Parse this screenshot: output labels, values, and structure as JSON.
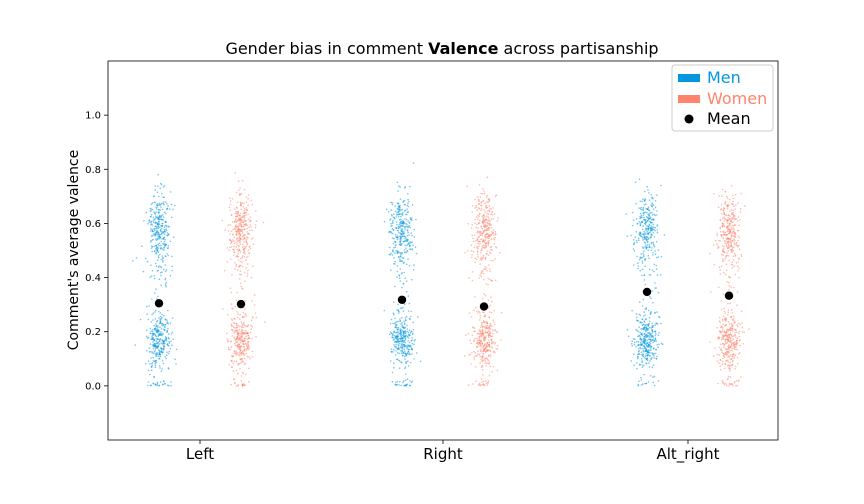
{
  "chart_data": {
    "type": "scatter",
    "title_pre": "Gender bias in comment ",
    "title_bold": "Valence",
    "title_post": " across partisanship",
    "ylabel": "Comment's average valence",
    "xlabel": "",
    "categories": [
      "Left",
      "Right",
      "Alt_right"
    ],
    "ylim": [
      -0.2,
      1.2
    ],
    "yticks": [
      "0.0",
      "0.2",
      "0.4",
      "0.6",
      "0.8",
      "1.0"
    ],
    "grid": false,
    "legend_placement": "top-right",
    "series": [
      {
        "name": "Men",
        "color": "#0497e0",
        "means": [
          0.305,
          0.318,
          0.347
        ]
      },
      {
        "name": "Women",
        "color": "#ff846e",
        "means": [
          0.302,
          0.293,
          0.333
        ]
      }
    ],
    "mean_marker": {
      "name": "Mean",
      "color": "#000000"
    }
  }
}
